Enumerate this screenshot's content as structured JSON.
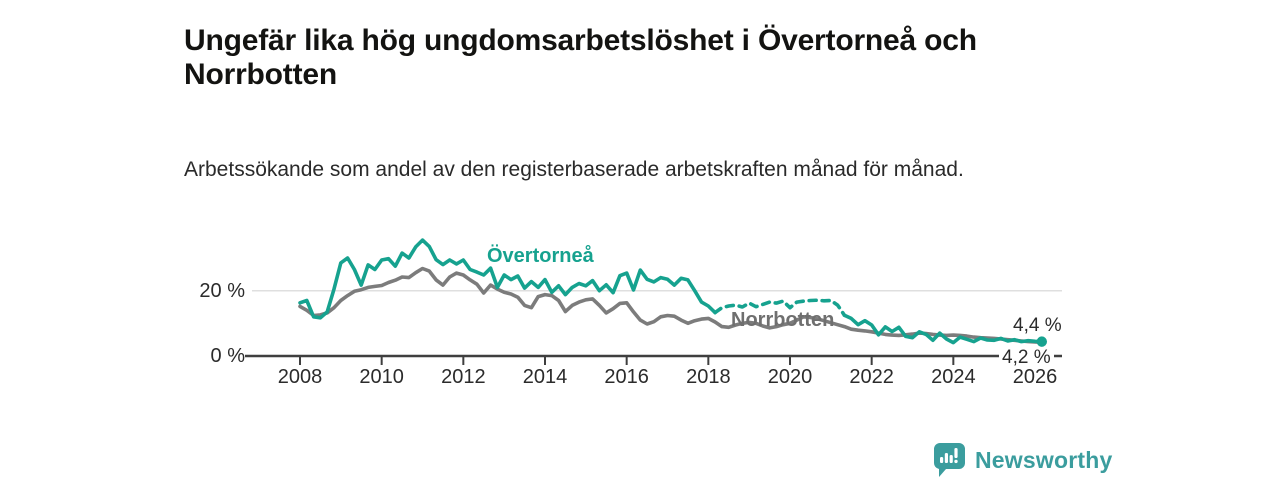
{
  "title": "Ungefär lika hög ungdomsarbetslöshet i Övertorneå och Norrbotten",
  "subtitle": "Arbetssökande som andel av den registerbaserade arbetskraften månad för månad.",
  "branding": {
    "logo_text": "Newsworthy",
    "logo_color": "#3b9d9e"
  },
  "chart_data": {
    "type": "line",
    "title": "Ungefär lika hög ungdomsarbetslöshet i Övertorneå och Norrbotten",
    "xlabel": "",
    "ylabel": "",
    "unit": "%",
    "x_axis": {
      "ticks": [
        2008,
        2010,
        2012,
        2014,
        2016,
        2018,
        2020,
        2022,
        2024,
        2026
      ],
      "range": [
        2007.6,
        2026.6
      ]
    },
    "y_axis": {
      "ticks": [
        {
          "value": 0,
          "label": "0 %"
        },
        {
          "value": 20,
          "label": "20 %"
        }
      ],
      "range": [
        0,
        36
      ],
      "grid_values": [
        20
      ],
      "grid_color": "#dfdfdf",
      "axis_color": "#3f3f3f"
    },
    "legend_position": "inline-labels",
    "x_start": 2008.0,
    "x_step_months": 2,
    "series": [
      {
        "name": "Övertorneå",
        "color": "#16a28f",
        "end_label": "4,4 %",
        "end_dot": true,
        "style_segments": [
          {
            "from": 0,
            "to": 61,
            "dash": false
          },
          {
            "from": 61,
            "to": 80,
            "dash": true
          },
          {
            "from": 80,
            "to": 109,
            "dash": false
          }
        ],
        "values": [
          16.3,
          17.0,
          12.0,
          11.7,
          13.5,
          20.5,
          28.5,
          30.0,
          26.5,
          21.7,
          27.9,
          26.5,
          29.4,
          29.8,
          27.5,
          31.5,
          30.0,
          33.4,
          35.5,
          33.5,
          29.5,
          28.0,
          29.4,
          28.2,
          29.4,
          26.5,
          25.7,
          24.8,
          26.9,
          21.0,
          24.8,
          23.4,
          24.5,
          20.8,
          22.8,
          21.0,
          23.4,
          19.5,
          21.5,
          18.8,
          21.0,
          22.2,
          21.5,
          23.1,
          20.0,
          21.8,
          19.4,
          24.6,
          25.4,
          20.2,
          26.3,
          23.5,
          22.7,
          24.0,
          23.5,
          21.7,
          23.8,
          23.3,
          20.0,
          16.5,
          15.3,
          13.3,
          14.8,
          15.3,
          15.6,
          15.0,
          16.2,
          15.1,
          15.8,
          16.5,
          16.2,
          16.8,
          14.8,
          16.5,
          16.8,
          17.0,
          17.1,
          16.9,
          17.0,
          15.6,
          12.5,
          11.5,
          9.6,
          10.8,
          9.5,
          6.5,
          8.9,
          7.5,
          8.8,
          6.0,
          5.6,
          7.4,
          6.6,
          4.8,
          7.0,
          5.2,
          4.1,
          5.8,
          5.1,
          4.4,
          5.5,
          4.9,
          4.8,
          5.4,
          4.6,
          5.0,
          4.4,
          4.7,
          4.5,
          4.4
        ]
      },
      {
        "name": "Norrbotten",
        "color": "#7c7c7c",
        "end_label": "4,2 %",
        "end_dot": false,
        "style_segments": [
          {
            "from": 0,
            "to": 109,
            "dash": false
          }
        ],
        "values": [
          15.2,
          14.0,
          12.4,
          12.6,
          13.2,
          14.8,
          17.0,
          18.5,
          19.8,
          20.3,
          21.0,
          21.3,
          21.6,
          22.5,
          23.2,
          24.2,
          24.0,
          25.5,
          26.8,
          26.0,
          23.3,
          21.7,
          24.2,
          25.4,
          24.8,
          23.3,
          22.0,
          19.3,
          21.7,
          20.5,
          19.5,
          19.0,
          18.0,
          15.5,
          14.8,
          18.2,
          18.8,
          18.5,
          17.0,
          13.6,
          15.5,
          16.5,
          17.2,
          17.5,
          15.5,
          13.2,
          14.5,
          16.1,
          16.3,
          13.5,
          11.0,
          9.8,
          10.5,
          12.0,
          12.4,
          12.2,
          11.0,
          10.0,
          10.8,
          11.3,
          11.5,
          10.4,
          9.0,
          8.8,
          9.5,
          10.0,
          10.3,
          10.0,
          9.2,
          8.6,
          9.0,
          9.6,
          10.0,
          11.0,
          12.0,
          11.8,
          11.4,
          10.8,
          10.2,
          9.6,
          9.0,
          8.2,
          7.9,
          7.7,
          7.4,
          7.0,
          6.6,
          6.4,
          6.3,
          6.5,
          6.7,
          7.0,
          6.9,
          6.6,
          6.4,
          6.3,
          6.4,
          6.3,
          6.1,
          5.8,
          5.6,
          5.5,
          5.4,
          5.2,
          5.0,
          4.8,
          4.6,
          4.4,
          4.3,
          4.2
        ]
      }
    ]
  }
}
